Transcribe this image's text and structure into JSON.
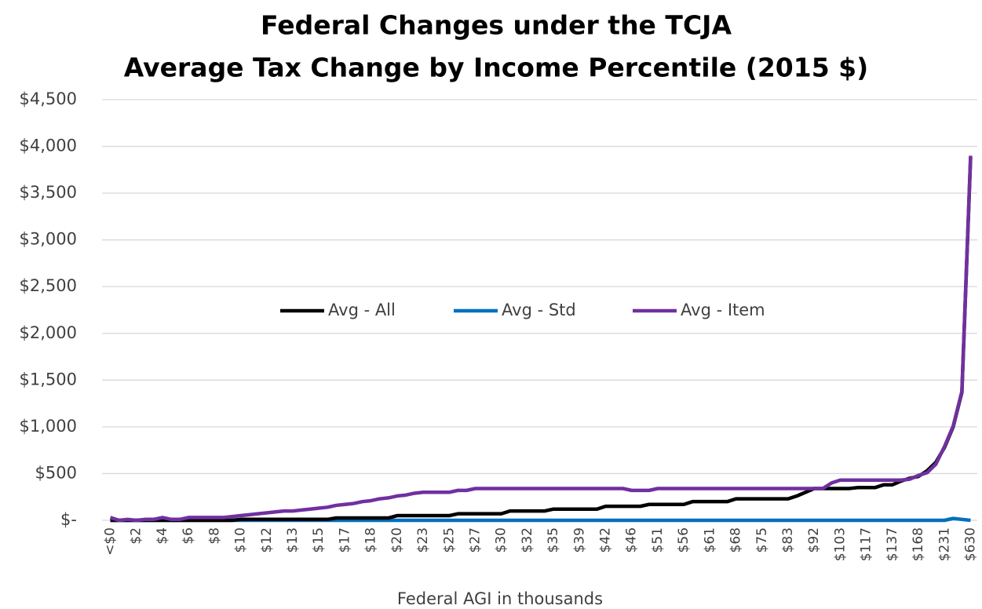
{
  "chart_data": {
    "type": "line",
    "title": [
      "Federal Changes under the TCJA",
      "Average Tax Change by Income Percentile (2015 $)"
    ],
    "xlabel": "Federal AGI in thousands",
    "categories": [
      "<$0",
      null,
      null,
      "$2",
      null,
      null,
      "$4",
      null,
      null,
      "$6",
      null,
      null,
      "$8",
      null,
      null,
      "$10",
      null,
      null,
      "$12",
      null,
      null,
      "$13",
      null,
      null,
      "$15",
      null,
      null,
      "$17",
      null,
      null,
      "$18",
      null,
      null,
      "$20",
      null,
      null,
      "$23",
      null,
      null,
      "$25",
      null,
      null,
      "$27",
      null,
      null,
      "$30",
      null,
      null,
      "$32",
      null,
      null,
      "$35",
      null,
      null,
      "$39",
      null,
      null,
      "$42",
      null,
      null,
      "$46",
      null,
      null,
      "$51",
      null,
      null,
      "$56",
      null,
      null,
      "$61",
      null,
      null,
      "$68",
      null,
      null,
      "$75",
      null,
      null,
      "$83",
      null,
      null,
      "$92",
      null,
      null,
      "$103",
      null,
      null,
      "$117",
      null,
      null,
      "$137",
      null,
      null,
      "$168",
      null,
      null,
      "$231",
      null,
      null,
      "$630"
    ],
    "series": [
      {
        "name": "Avg - All",
        "color": "#000000",
        "values": [
          0,
          0,
          0,
          0,
          0,
          0,
          0,
          0,
          0,
          0,
          0,
          0,
          0,
          0,
          0,
          10,
          10,
          10,
          10,
          10,
          10,
          10,
          10,
          10,
          10,
          10,
          25,
          25,
          25,
          25,
          25,
          25,
          25,
          50,
          50,
          50,
          50,
          50,
          50,
          50,
          70,
          70,
          70,
          70,
          70,
          70,
          100,
          100,
          100,
          100,
          100,
          120,
          120,
          120,
          120,
          120,
          120,
          150,
          150,
          150,
          150,
          150,
          170,
          170,
          170,
          170,
          170,
          200,
          200,
          200,
          200,
          200,
          230,
          230,
          230,
          230,
          230,
          230,
          230,
          260,
          300,
          340,
          340,
          340,
          340,
          340,
          350,
          350,
          350,
          380,
          380,
          420,
          450,
          470,
          530,
          620,
          780,
          1000,
          1370,
          3880
        ]
      },
      {
        "name": "Avg - Std",
        "color": "#0070c0",
        "values": [
          0,
          0,
          0,
          0,
          0,
          0,
          0,
          0,
          0,
          0,
          0,
          0,
          0,
          0,
          0,
          0,
          0,
          0,
          0,
          0,
          0,
          0,
          0,
          0,
          0,
          0,
          0,
          0,
          0,
          0,
          0,
          0,
          0,
          0,
          0,
          0,
          0,
          0,
          0,
          0,
          0,
          0,
          0,
          0,
          0,
          0,
          0,
          0,
          0,
          0,
          0,
          0,
          0,
          0,
          0,
          0,
          0,
          0,
          0,
          0,
          0,
          0,
          0,
          0,
          0,
          0,
          0,
          0,
          0,
          0,
          0,
          0,
          0,
          0,
          0,
          0,
          0,
          0,
          0,
          0,
          0,
          0,
          0,
          0,
          0,
          0,
          0,
          0,
          0,
          0,
          0,
          0,
          0,
          0,
          0,
          0,
          0,
          20,
          10,
          0
        ]
      },
      {
        "name": "Avg - Item",
        "color": "#7030a0",
        "values": [
          30,
          0,
          10,
          0,
          10,
          10,
          30,
          10,
          10,
          30,
          30,
          30,
          30,
          30,
          40,
          50,
          60,
          70,
          80,
          90,
          100,
          100,
          110,
          120,
          130,
          140,
          160,
          170,
          180,
          200,
          210,
          230,
          240,
          260,
          270,
          290,
          300,
          300,
          300,
          300,
          320,
          320,
          340,
          340,
          340,
          340,
          340,
          340,
          340,
          340,
          340,
          340,
          340,
          340,
          340,
          340,
          340,
          340,
          340,
          340,
          320,
          320,
          320,
          340,
          340,
          340,
          340,
          340,
          340,
          340,
          340,
          340,
          340,
          340,
          340,
          340,
          340,
          340,
          340,
          340,
          340,
          340,
          340,
          400,
          430,
          430,
          430,
          430,
          430,
          430,
          430,
          430,
          440,
          480,
          510,
          600,
          790,
          1010,
          1380,
          3900
        ]
      }
    ],
    "ylim": [
      0,
      4500
    ],
    "yticks": [
      {
        "value": 0,
        "label": "$-"
      },
      {
        "value": 500,
        "label": "$500"
      },
      {
        "value": 1000,
        "label": "$1,000"
      },
      {
        "value": 1500,
        "label": "$1,500"
      },
      {
        "value": 2000,
        "label": "$2,000"
      },
      {
        "value": 2500,
        "label": "$2,500"
      },
      {
        "value": 3000,
        "label": "$3,000"
      },
      {
        "value": 3500,
        "label": "$3,500"
      },
      {
        "value": 4000,
        "label": "$4,000"
      },
      {
        "value": 4500,
        "label": "$4,500"
      }
    ],
    "grid": true,
    "legend": "center"
  }
}
